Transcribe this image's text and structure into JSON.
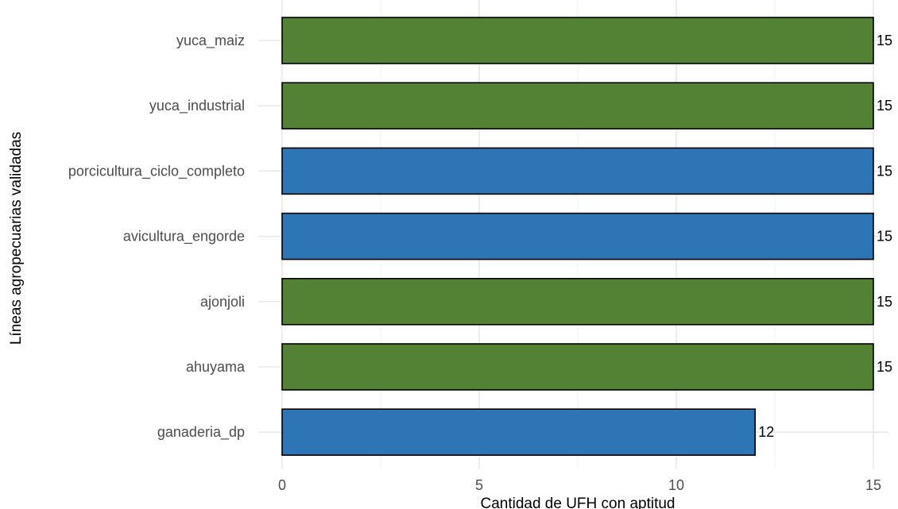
{
  "chart_data": {
    "type": "bar",
    "orientation": "horizontal",
    "xlabel": "Cantidad de UFH con aptitud",
    "ylabel": "Líneas agropecuarias validadas",
    "xlim": [
      0,
      15
    ],
    "x_ticks": [
      "0",
      "5",
      "10",
      "15"
    ],
    "grid": true,
    "categories": [
      "yuca_maiz",
      "yuca_industrial",
      "porcicultura_ciclo_completo",
      "avicultura_engorde",
      "ajonjoli",
      "ahuyama",
      "ganaderia_dp"
    ],
    "values": [
      15,
      15,
      15,
      15,
      15,
      15,
      12
    ],
    "value_labels": [
      "15",
      "15",
      "15",
      "15",
      "15",
      "15",
      "12"
    ],
    "bar_colors": [
      "#548235",
      "#548235",
      "#2e75b6",
      "#2e75b6",
      "#548235",
      "#548235",
      "#2e75b6"
    ]
  }
}
